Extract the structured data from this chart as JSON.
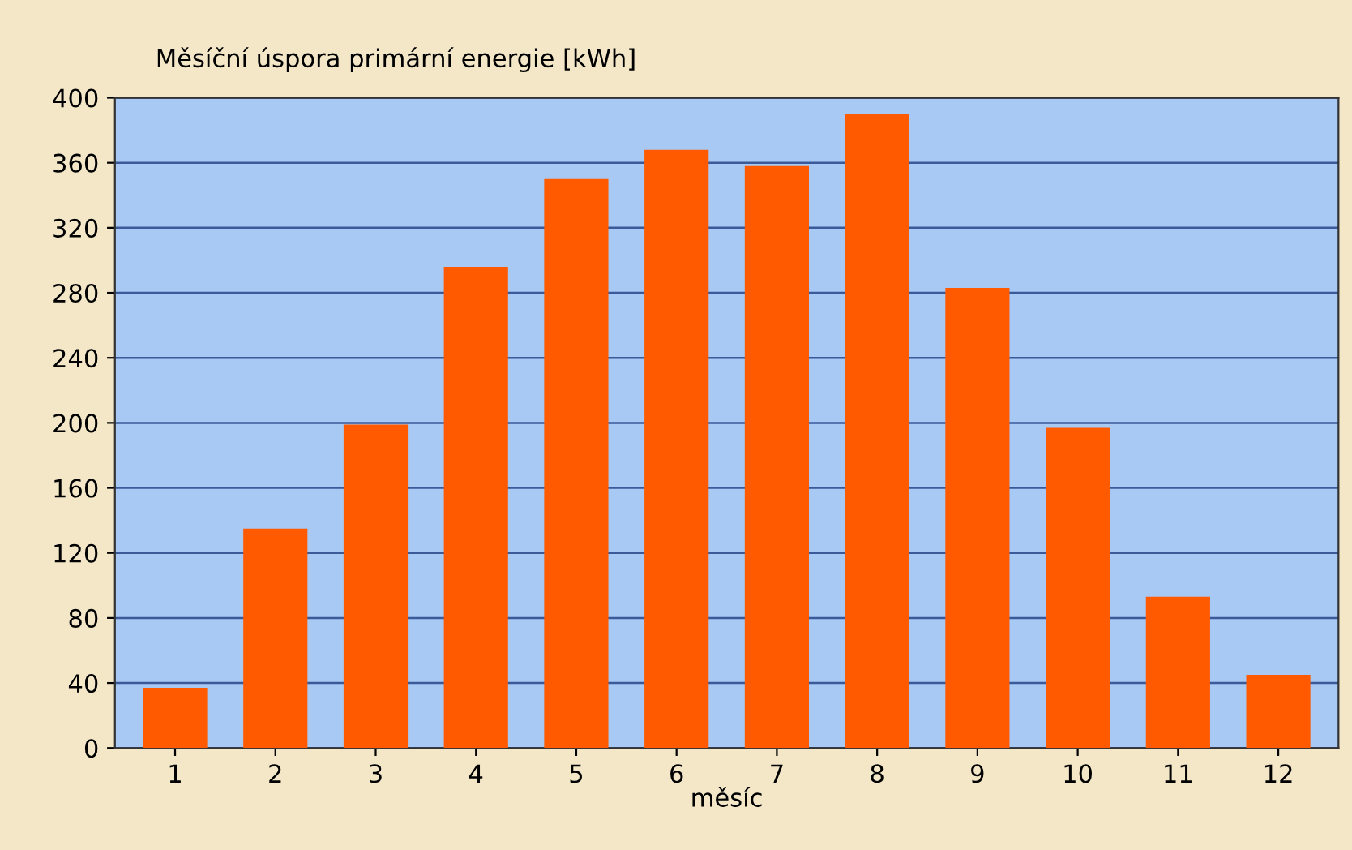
{
  "chart_data": {
    "type": "bar",
    "title": "Měsíční úspora primární energie [kWh]",
    "xlabel": "měsíc",
    "categories": [
      "1",
      "2",
      "3",
      "4",
      "5",
      "6",
      "7",
      "8",
      "9",
      "10",
      "11",
      "12"
    ],
    "values": [
      37,
      135,
      199,
      296,
      350,
      368,
      358,
      390,
      283,
      197,
      93,
      45
    ],
    "color": "#ff5a00",
    "ylim": [
      0,
      400
    ],
    "yticks": [
      0,
      40,
      80,
      120,
      160,
      200,
      240,
      280,
      320,
      360,
      400
    ],
    "grid": "y"
  }
}
